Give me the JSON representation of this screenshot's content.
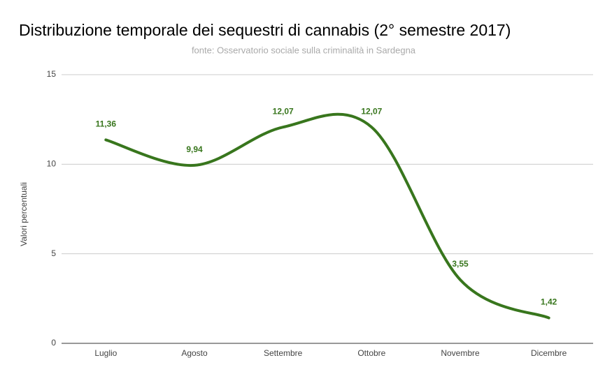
{
  "chart_data": {
    "type": "line",
    "title": "Distribuzione temporale dei sequestri di cannabis (2° semestre  2017)",
    "subtitle": "fonte: Osservatorio sociale sulla criminalità in Sardegna",
    "y_label": "Valori percentuali",
    "categories": [
      "Luglio",
      "Agosto",
      "Settembre",
      "Ottobre",
      "Novembre",
      "Dicembre"
    ],
    "series": [
      {
        "name": "Valori percentuali",
        "color": "#38761d",
        "values": [
          11.36,
          9.94,
          12.07,
          12.07,
          3.55,
          1.42
        ],
        "value_labels": [
          "11,36",
          "9,94",
          "12,07",
          "12,07",
          "3,55",
          "1,42"
        ]
      }
    ],
    "ylim": [
      0,
      15
    ],
    "yticks": [
      0,
      5,
      10,
      15
    ],
    "grid": true,
    "smooth": true
  }
}
